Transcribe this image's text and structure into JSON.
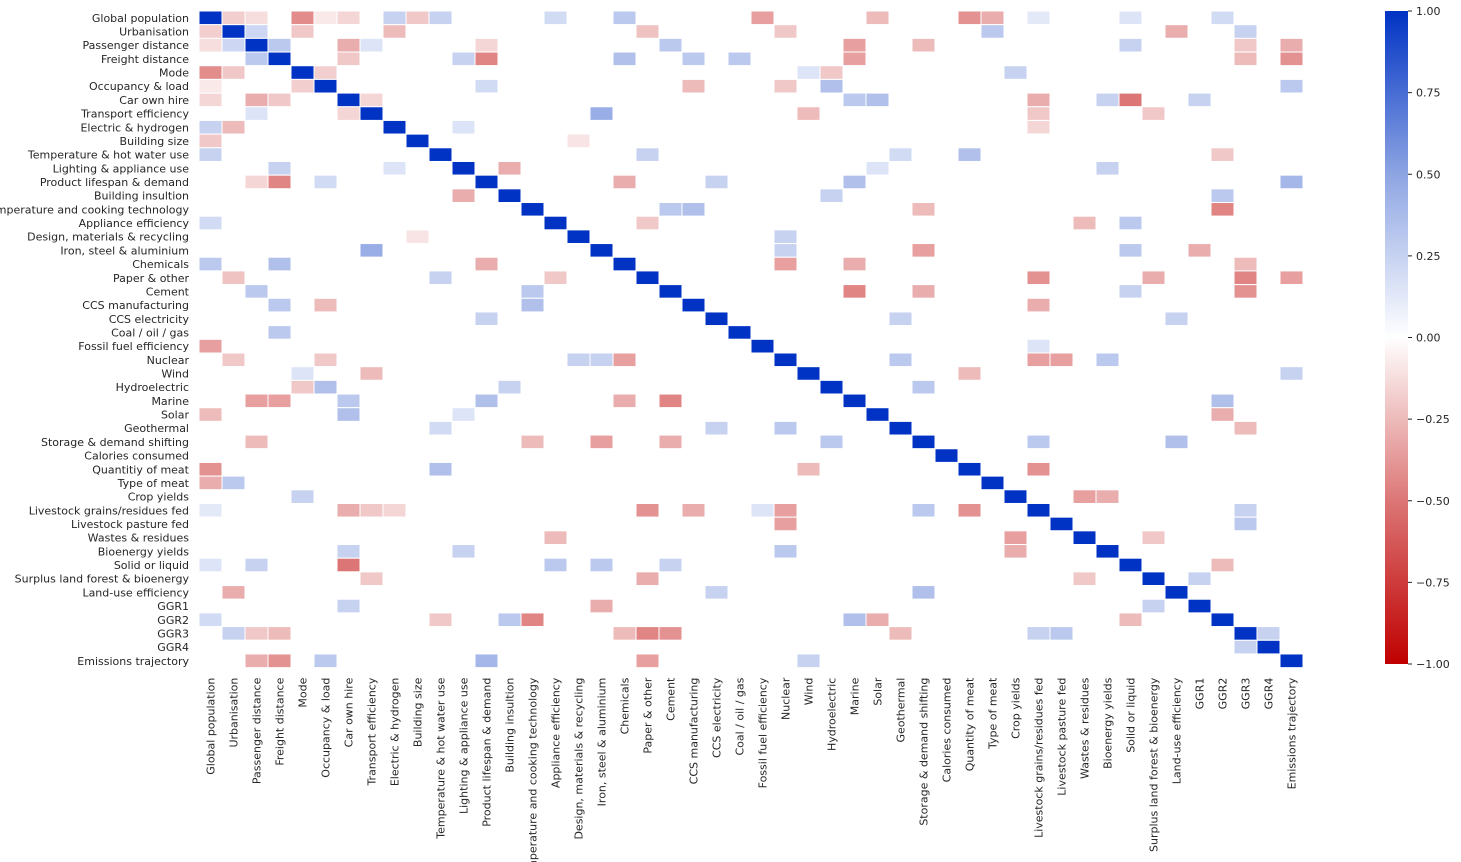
{
  "chart_data": {
    "type": "heatmap",
    "title": "",
    "xlabel": "",
    "ylabel": "",
    "variables": [
      "Global population",
      "Urbanisation",
      "Passenger distance",
      "Freight distance",
      "Mode",
      "Occupancy & load",
      "Car own hire",
      "Transport efficiency",
      "Electric & hydrogen",
      "Building size",
      "Temperature & hot water use",
      "Lighting & appliance use",
      "Product lifespan & demand",
      "Building insultion",
      "Temperature and cooking technology",
      "Appliance efficiency",
      "Design, materials & recycling",
      "Iron, steel & aluminium",
      "Chemicals",
      "Paper & other",
      "Cement",
      "CCS manufacturing",
      "CCS electricity",
      "Coal / oil / gas",
      "Fossil fuel efficiency",
      "Nuclear",
      "Wind",
      "Hydroelectric",
      "Marine",
      "Solar",
      "Geothermal",
      "Storage & demand shifting",
      "Calories consumed",
      "Quantitiy of meat",
      "Type of meat",
      "Crop yields",
      "Livestock grains/residues fed",
      "Livestock pasture fed",
      "Wastes & residues",
      "Bioenergy yields",
      "Solid or liquid",
      "Surplus land forest & bioenergy",
      "Land-use efficiency",
      "GGR1",
      "GGR2",
      "GGR3",
      "GGR4",
      "Emissions trajectory"
    ],
    "row_labels": [
      "Global population",
      "Urbanisation",
      "Passenger distance",
      "Freight distance",
      "Mode",
      "Occupancy & load",
      "Car own hire ",
      "Transport efficiency",
      "Electric & hydrogen",
      "Building size",
      "Temperature & hot water use ",
      "Lighting & appliance use",
      "Product lifespan & demand",
      "Building insultion",
      "Temperature and cooking technology",
      "Appliance efficiency ",
      "Design, materials & recycling",
      "Iron, steel & aluminium",
      "Chemicals",
      "Paper & other",
      "Cement",
      "CCS manufacturing",
      "CCS electricity",
      "Coal / oil / gas ",
      "Fossil fuel efficiency",
      "Nuclear",
      "Wind",
      "Hydroelectric",
      "Marine",
      "Solar",
      "Geothermal",
      "Storage & demand shifting",
      "Calories consumed ",
      "Quantitiy of meat",
      "Type of meat ",
      "Crop yields",
      "Livestock grains/residues fed",
      "Livestock pasture fed",
      "Wastes & residues",
      "Bioenergy yields",
      "Solid or liquid ",
      "Surplus land forest & bioenergy",
      "Land-use efficiency ",
      "GGR1",
      "GGR2",
      "GGR3",
      "GGR4",
      "Emissions trajectory"
    ],
    "col_labels": [
      "Global population",
      "Urbanisation",
      "Passenger distance",
      "Freight distance",
      "Mode",
      "Occupancy & load",
      "Car own hire",
      "Transport efficiency",
      "Electric & hydrogen",
      "Building size",
      "Temperature & hot water use",
      "Lighting & appliance use",
      "Product lifespan & demand",
      "Building insultion",
      "Temperature and cooking technology",
      "Appliance efficiency",
      "Design, materials & recycling",
      "Iron, steel & aluminium",
      "Chemicals",
      "Paper & other",
      "Cement",
      "CCS manufacturing",
      "CCS electricity",
      "Coal / oil / gas",
      "Fossil fuel efficiency",
      "Nuclear",
      "Wind",
      "Hydroelectric",
      "Marine",
      "Solar",
      "Geothermal",
      "Storage & demand shifting",
      "Calories consumed",
      "Quantity of meat",
      "Type of meat",
      "Crop yields",
      "Livestock grains/residues fed",
      "Livestock pasture fed",
      "Wastes & residues",
      "Bioenergy yields",
      "Solid or liquid",
      "Surplus land forest & bioenergy",
      "Land-use efficiency",
      "GGR1",
      "GGR2",
      "GGR3",
      "GGR4",
      "Emissions trajectory"
    ],
    "diagonal": 1.0,
    "correlations": [
      {
        "a": 0,
        "b": 1,
        "v": -0.18
      },
      {
        "a": 0,
        "b": 2,
        "v": -0.12
      },
      {
        "a": 0,
        "b": 4,
        "v": -0.42
      },
      {
        "a": 0,
        "b": 5,
        "v": -0.08
      },
      {
        "a": 0,
        "b": 6,
        "v": -0.15
      },
      {
        "a": 0,
        "b": 8,
        "v": 0.25
      },
      {
        "a": 0,
        "b": 9,
        "v": -0.2
      },
      {
        "a": 0,
        "b": 10,
        "v": 0.25
      },
      {
        "a": 0,
        "b": 15,
        "v": 0.2
      },
      {
        "a": 0,
        "b": 18,
        "v": 0.3
      },
      {
        "a": 0,
        "b": 24,
        "v": -0.35
      },
      {
        "a": 0,
        "b": 29,
        "v": -0.25
      },
      {
        "a": 0,
        "b": 33,
        "v": -0.4
      },
      {
        "a": 0,
        "b": 34,
        "v": -0.3
      },
      {
        "a": 0,
        "b": 36,
        "v": 0.12
      },
      {
        "a": 0,
        "b": 40,
        "v": 0.15
      },
      {
        "a": 0,
        "b": 44,
        "v": 0.2
      },
      {
        "a": 1,
        "b": 2,
        "v": 0.22
      },
      {
        "a": 1,
        "b": 4,
        "v": -0.2
      },
      {
        "a": 1,
        "b": 8,
        "v": -0.25
      },
      {
        "a": 1,
        "b": 19,
        "v": -0.22
      },
      {
        "a": 1,
        "b": 25,
        "v": -0.2
      },
      {
        "a": 1,
        "b": 34,
        "v": 0.3
      },
      {
        "a": 1,
        "b": 42,
        "v": -0.3
      },
      {
        "a": 1,
        "b": 45,
        "v": 0.25
      },
      {
        "a": 2,
        "b": 3,
        "v": 0.3
      },
      {
        "a": 2,
        "b": 6,
        "v": -0.3
      },
      {
        "a": 2,
        "b": 7,
        "v": 0.15
      },
      {
        "a": 2,
        "b": 12,
        "v": -0.15
      },
      {
        "a": 2,
        "b": 20,
        "v": 0.3
      },
      {
        "a": 2,
        "b": 28,
        "v": -0.35
      },
      {
        "a": 2,
        "b": 31,
        "v": -0.25
      },
      {
        "a": 2,
        "b": 40,
        "v": 0.25
      },
      {
        "a": 2,
        "b": 45,
        "v": -0.2
      },
      {
        "a": 2,
        "b": 47,
        "v": -0.3
      },
      {
        "a": 3,
        "b": 6,
        "v": -0.2
      },
      {
        "a": 3,
        "b": 11,
        "v": 0.25
      },
      {
        "a": 3,
        "b": 12,
        "v": -0.45
      },
      {
        "a": 3,
        "b": 18,
        "v": 0.35
      },
      {
        "a": 3,
        "b": 21,
        "v": 0.3
      },
      {
        "a": 3,
        "b": 23,
        "v": 0.3
      },
      {
        "a": 3,
        "b": 28,
        "v": -0.35
      },
      {
        "a": 3,
        "b": 45,
        "v": -0.25
      },
      {
        "a": 3,
        "b": 47,
        "v": -0.4
      },
      {
        "a": 4,
        "b": 5,
        "v": -0.18
      },
      {
        "a": 4,
        "b": 27,
        "v": -0.2
      },
      {
        "a": 4,
        "b": 35,
        "v": 0.25
      },
      {
        "a": 4,
        "b": 26,
        "v": 0.15
      },
      {
        "a": 5,
        "b": 12,
        "v": 0.2
      },
      {
        "a": 5,
        "b": 21,
        "v": -0.25
      },
      {
        "a": 5,
        "b": 25,
        "v": -0.2
      },
      {
        "a": 5,
        "b": 27,
        "v": 0.35
      },
      {
        "a": 5,
        "b": 47,
        "v": 0.3
      },
      {
        "a": 6,
        "b": 7,
        "v": -0.15
      },
      {
        "a": 6,
        "b": 28,
        "v": 0.3
      },
      {
        "a": 6,
        "b": 29,
        "v": 0.35
      },
      {
        "a": 6,
        "b": 36,
        "v": -0.3
      },
      {
        "a": 6,
        "b": 39,
        "v": 0.25
      },
      {
        "a": 6,
        "b": 40,
        "v": -0.5
      },
      {
        "a": 6,
        "b": 43,
        "v": 0.25
      },
      {
        "a": 7,
        "b": 17,
        "v": 0.45
      },
      {
        "a": 7,
        "b": 26,
        "v": -0.25
      },
      {
        "a": 7,
        "b": 36,
        "v": -0.2
      },
      {
        "a": 7,
        "b": 41,
        "v": -0.2
      },
      {
        "a": 8,
        "b": 11,
        "v": 0.15
      },
      {
        "a": 8,
        "b": 36,
        "v": -0.15
      },
      {
        "a": 9,
        "b": 16,
        "v": -0.1
      },
      {
        "a": 10,
        "b": 19,
        "v": 0.25
      },
      {
        "a": 10,
        "b": 30,
        "v": 0.2
      },
      {
        "a": 10,
        "b": 33,
        "v": 0.35
      },
      {
        "a": 10,
        "b": 44,
        "v": -0.2
      },
      {
        "a": 11,
        "b": 13,
        "v": -0.3
      },
      {
        "a": 11,
        "b": 29,
        "v": 0.15
      },
      {
        "a": 11,
        "b": 39,
        "v": 0.25
      },
      {
        "a": 12,
        "b": 18,
        "v": -0.3
      },
      {
        "a": 12,
        "b": 22,
        "v": 0.25
      },
      {
        "a": 12,
        "b": 28,
        "v": 0.35
      },
      {
        "a": 12,
        "b": 47,
        "v": 0.4
      },
      {
        "a": 13,
        "b": 27,
        "v": 0.25
      },
      {
        "a": 13,
        "b": 44,
        "v": 0.3
      },
      {
        "a": 14,
        "b": 20,
        "v": 0.3
      },
      {
        "a": 14,
        "b": 21,
        "v": 0.35
      },
      {
        "a": 14,
        "b": 31,
        "v": -0.25
      },
      {
        "a": 14,
        "b": 44,
        "v": -0.45
      },
      {
        "a": 15,
        "b": 19,
        "v": -0.2
      },
      {
        "a": 15,
        "b": 38,
        "v": -0.25
      },
      {
        "a": 15,
        "b": 40,
        "v": 0.3
      },
      {
        "a": 16,
        "b": 25,
        "v": 0.25
      },
      {
        "a": 17,
        "b": 25,
        "v": 0.25
      },
      {
        "a": 17,
        "b": 31,
        "v": -0.35
      },
      {
        "a": 17,
        "b": 40,
        "v": 0.3
      },
      {
        "a": 17,
        "b": 43,
        "v": -0.3
      },
      {
        "a": 18,
        "b": 25,
        "v": -0.35
      },
      {
        "a": 18,
        "b": 28,
        "v": -0.3
      },
      {
        "a": 18,
        "b": 45,
        "v": -0.25
      },
      {
        "a": 19,
        "b": 36,
        "v": -0.4
      },
      {
        "a": 19,
        "b": 41,
        "v": -0.3
      },
      {
        "a": 19,
        "b": 45,
        "v": -0.45
      },
      {
        "a": 19,
        "b": 47,
        "v": -0.35
      },
      {
        "a": 20,
        "b": 28,
        "v": -0.45
      },
      {
        "a": 20,
        "b": 31,
        "v": -0.3
      },
      {
        "a": 20,
        "b": 40,
        "v": 0.25
      },
      {
        "a": 20,
        "b": 45,
        "v": -0.4
      },
      {
        "a": 21,
        "b": 36,
        "v": -0.3
      },
      {
        "a": 22,
        "b": 30,
        "v": 0.25
      },
      {
        "a": 22,
        "b": 42,
        "v": 0.25
      },
      {
        "a": 24,
        "b": 36,
        "v": 0.15
      },
      {
        "a": 25,
        "b": 30,
        "v": 0.3
      },
      {
        "a": 25,
        "b": 36,
        "v": -0.35
      },
      {
        "a": 25,
        "b": 37,
        "v": -0.35
      },
      {
        "a": 25,
        "b": 39,
        "v": 0.3
      },
      {
        "a": 26,
        "b": 33,
        "v": -0.25
      },
      {
        "a": 26,
        "b": 47,
        "v": 0.25
      },
      {
        "a": 27,
        "b": 31,
        "v": 0.3
      },
      {
        "a": 28,
        "b": 44,
        "v": 0.35
      },
      {
        "a": 29,
        "b": 44,
        "v": -0.3
      },
      {
        "a": 30,
        "b": 45,
        "v": -0.25
      },
      {
        "a": 31,
        "b": 36,
        "v": 0.3
      },
      {
        "a": 31,
        "b": 42,
        "v": 0.35
      },
      {
        "a": 33,
        "b": 36,
        "v": -0.4
      },
      {
        "a": 35,
        "b": 38,
        "v": -0.35
      },
      {
        "a": 35,
        "b": 39,
        "v": -0.3
      },
      {
        "a": 36,
        "b": 45,
        "v": 0.25
      },
      {
        "a": 37,
        "b": 45,
        "v": 0.3
      },
      {
        "a": 38,
        "b": 41,
        "v": -0.2
      },
      {
        "a": 40,
        "b": 44,
        "v": -0.25
      },
      {
        "a": 41,
        "b": 43,
        "v": 0.25
      },
      {
        "a": 45,
        "b": 46,
        "v": 0.25
      }
    ],
    "vmin": -1.0,
    "vmax": 1.0,
    "colormap": {
      "stops": [
        {
          "v": -1.0,
          "color": "#c00000"
        },
        {
          "v": -0.5,
          "color": "#dc7676"
        },
        {
          "v": 0.0,
          "color": "#ffffff"
        },
        {
          "v": 0.5,
          "color": "#8ea5e3"
        },
        {
          "v": 1.0,
          "color": "#0033c4"
        }
      ]
    },
    "colorbar": {
      "ticks": [
        1.0,
        0.75,
        0.5,
        0.25,
        0.0,
        -0.25,
        -0.5,
        -0.75,
        -1.0
      ],
      "tick_labels": [
        "1.00",
        "0.75",
        "0.50",
        "0.25",
        "0.00",
        "−0.25",
        "−0.50",
        "−0.75",
        "−1.00"
      ],
      "placement": "right"
    },
    "grid": true
  }
}
